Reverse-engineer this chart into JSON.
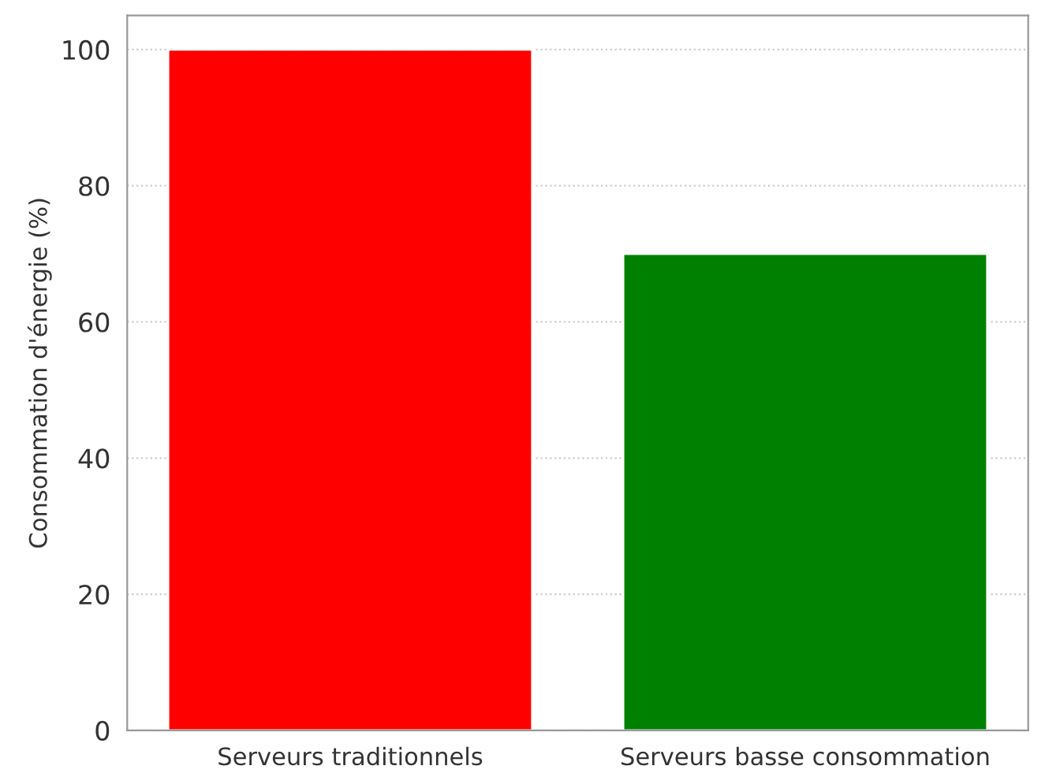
{
  "chart_data": {
    "type": "bar",
    "ylabel": "Consommation d'énergie (%)",
    "categories": [
      "Serveurs traditionnels",
      "Serveurs basse consommation"
    ],
    "values": [
      100,
      70
    ],
    "colors": [
      "#ff0000",
      "#008000"
    ],
    "ylim": [
      0,
      105
    ],
    "yticks": [
      0,
      20,
      40,
      60,
      80,
      100
    ],
    "grid": "y"
  }
}
